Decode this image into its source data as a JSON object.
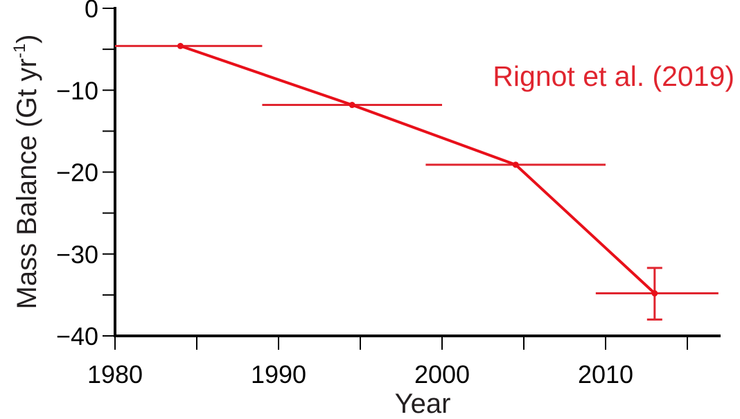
{
  "chart_data": {
    "type": "line",
    "title": "",
    "xlabel": "Year",
    "ylabel": "Mass Balance (Gt yr",
    "ylabel_superscript": "-1",
    "ylabel_close": ")",
    "xlim": [
      1980,
      2017
    ],
    "ylim": [
      -40,
      0
    ],
    "x_ticks": [
      1980,
      1990,
      2000,
      2010
    ],
    "x_tick_labels": [
      "1980",
      "1990",
      "2000",
      "2010"
    ],
    "x_minor_ticks": [
      1985,
      1995,
      2005,
      2015
    ],
    "y_ticks": [
      0,
      -10,
      -20,
      -30,
      -40
    ],
    "y_tick_labels": [
      "0",
      "−10",
      "−20",
      "−30",
      "−40"
    ],
    "y_minor_ticks": [
      -5,
      -15,
      -25,
      -35
    ],
    "grid": false,
    "series": [
      {
        "name": "Rignot et al. (2019)",
        "color": "#e8101a",
        "errorbar_color": "#e0252f",
        "points": [
          {
            "x": 1984,
            "y": -4.6,
            "x_range": [
              1980,
              1989
            ]
          },
          {
            "x": 1994.5,
            "y": -11.8,
            "x_range": [
              1989,
              2000
            ]
          },
          {
            "x": 2004.5,
            "y": -19.1,
            "x_range": [
              1999,
              2010
            ]
          },
          {
            "x": 2013,
            "y": -34.8,
            "x_range": [
              2009.4,
              2016.9
            ],
            "y_range": [
              -38.0,
              -31.7
            ]
          }
        ]
      }
    ],
    "annotation": "Rignot et al. (2019)"
  }
}
